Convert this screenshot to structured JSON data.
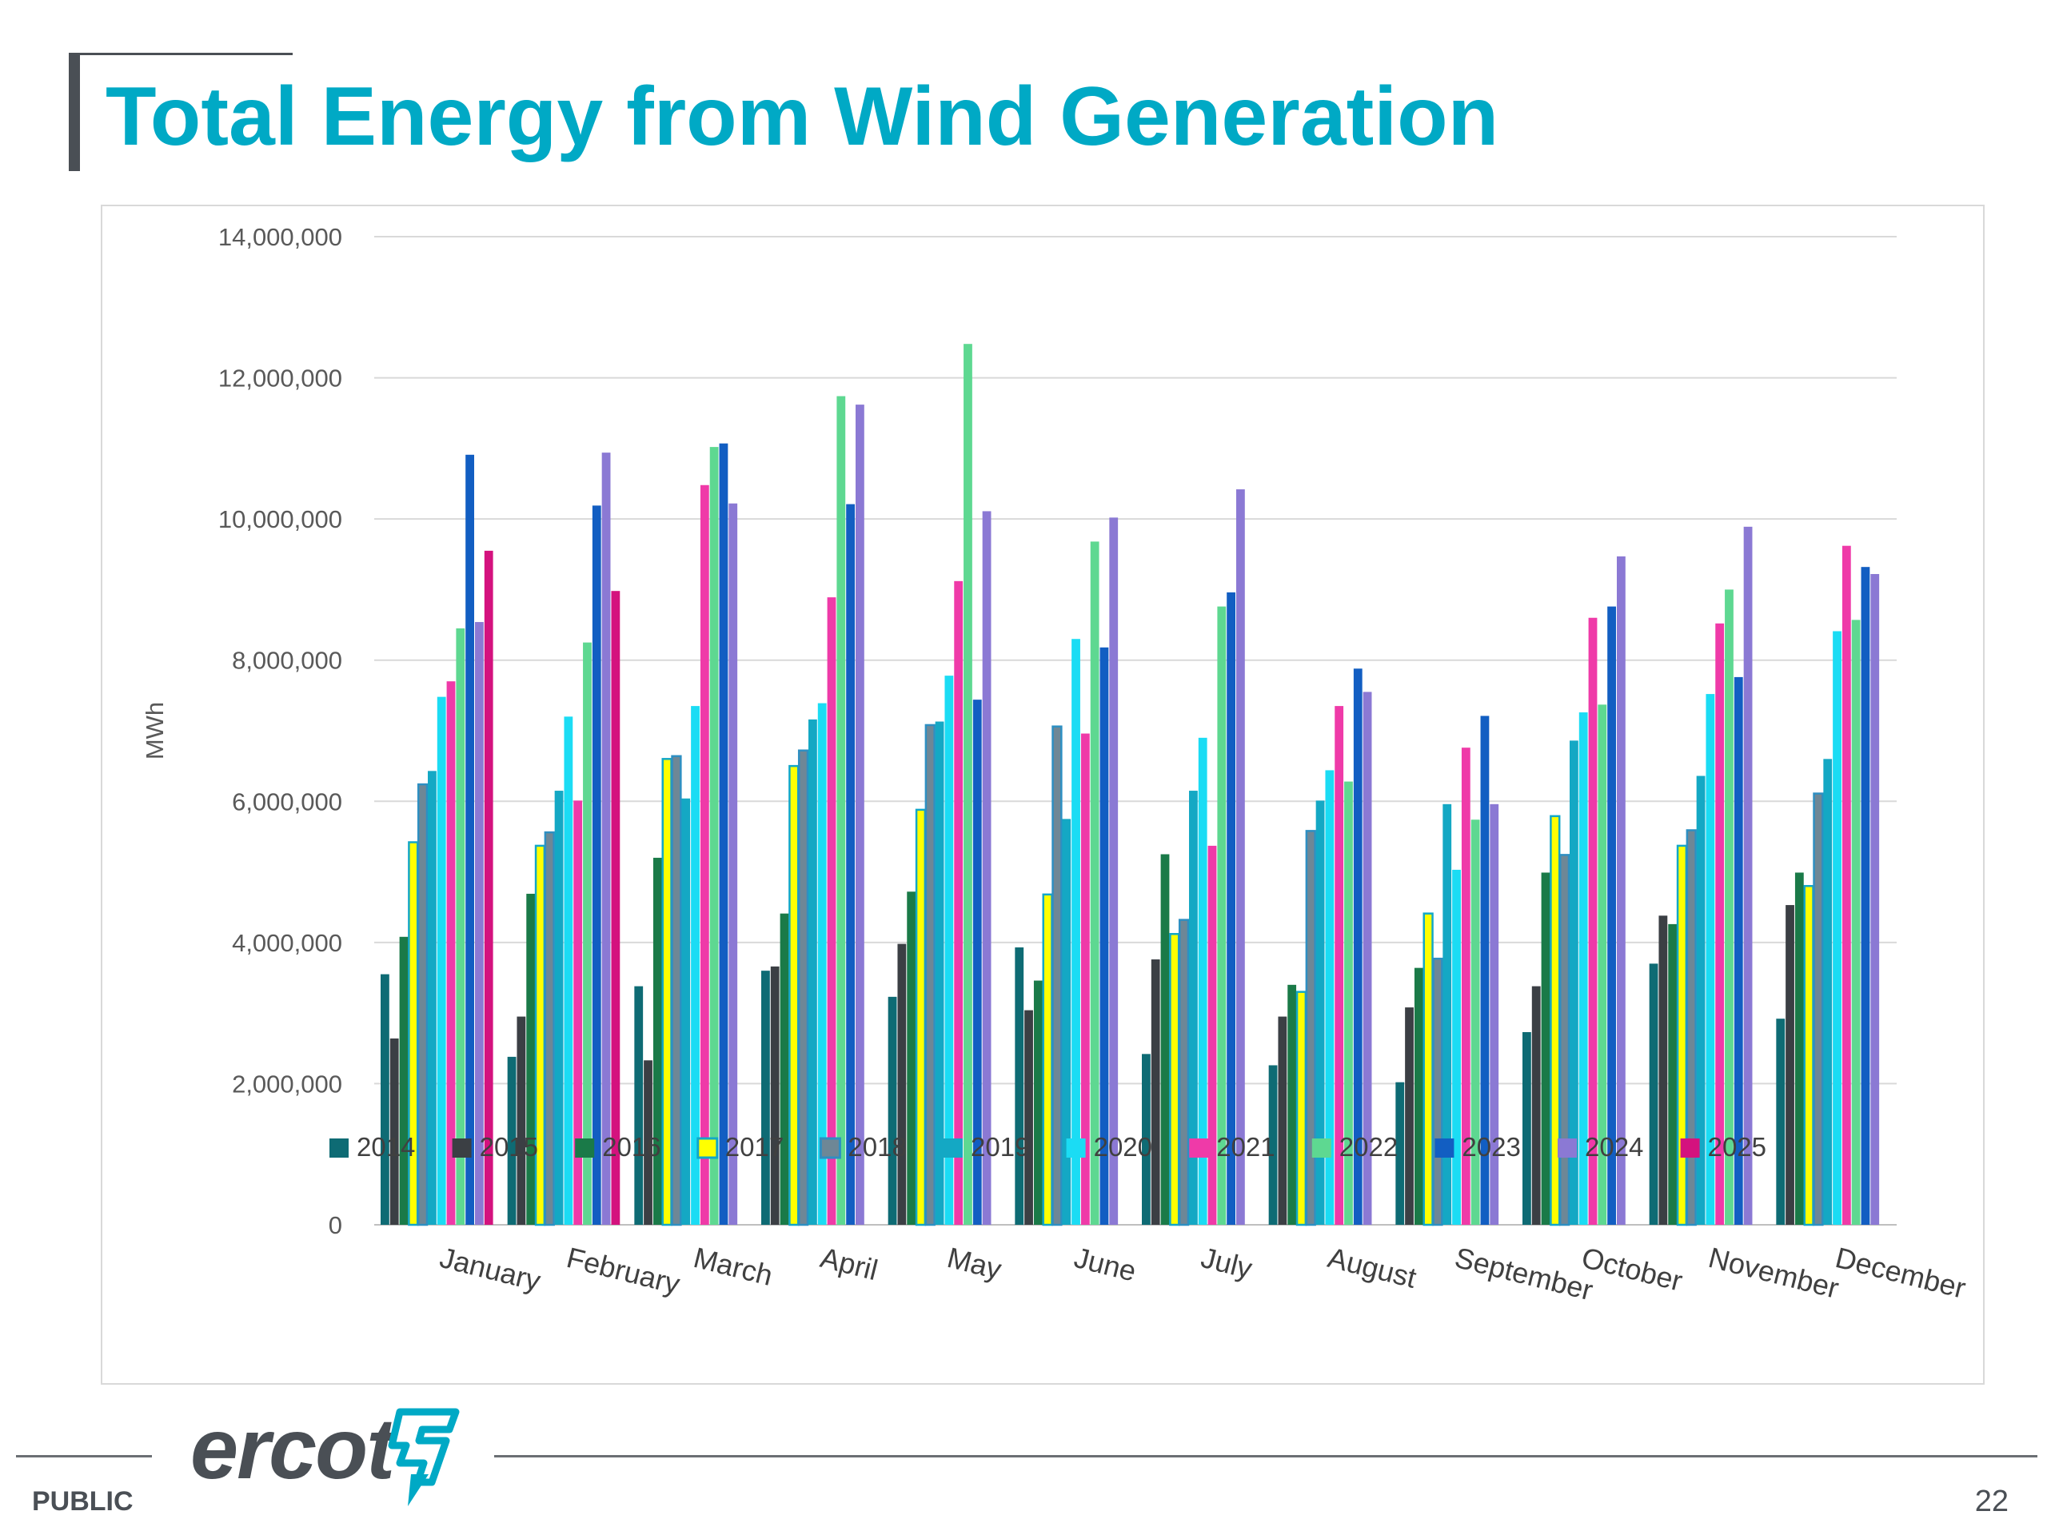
{
  "slide": {
    "title": "Total Energy from Wind Generation",
    "footer_label": "PUBLIC",
    "page_number": "22",
    "logo_text": "ercot"
  },
  "colors": {
    "title": "#00a9c5",
    "logo": "#4a4f55",
    "logo_mark": "#00a9c5"
  },
  "chart_data": {
    "type": "bar",
    "title": "",
    "xlabel": "",
    "ylabel": "MWh",
    "ylim": [
      0,
      14000000
    ],
    "yticks": [
      0,
      2000000,
      4000000,
      6000000,
      8000000,
      10000000,
      12000000,
      14000000
    ],
    "ytick_labels": [
      "0",
      "2,000,000",
      "4,000,000",
      "6,000,000",
      "8,000,000",
      "10,000,000",
      "12,000,000",
      "14,000,000"
    ],
    "grid": true,
    "legend_position": "bottom",
    "categories": [
      "January",
      "February",
      "March",
      "April",
      "May",
      "June",
      "July",
      "August",
      "September",
      "October",
      "November",
      "December"
    ],
    "series": [
      {
        "name": "2014",
        "color": "#0e6b74",
        "values": [
          3550000,
          2380000,
          3380000,
          3600000,
          3230000,
          3930000,
          2420000,
          2260000,
          2020000,
          2730000,
          3700000,
          2920000
        ]
      },
      {
        "name": "2015",
        "color": "#3b3f44",
        "values": [
          2640000,
          2950000,
          2330000,
          3660000,
          3980000,
          3040000,
          3760000,
          2950000,
          3080000,
          3380000,
          4380000,
          4530000
        ]
      },
      {
        "name": "2016",
        "color": "#1a7a48",
        "values": [
          4080000,
          4690000,
          5200000,
          4410000,
          4720000,
          3460000,
          5250000,
          3400000,
          3640000,
          4990000,
          4260000,
          4990000
        ]
      },
      {
        "name": "2017",
        "color": "#ffff00",
        "outline": "#12a7c8",
        "values": [
          5420000,
          5370000,
          6600000,
          6500000,
          5880000,
          4680000,
          4120000,
          3300000,
          4410000,
          5790000,
          5370000,
          4800000
        ]
      },
      {
        "name": "2018",
        "color": "#6e8796",
        "outline": "#2e8fc2",
        "values": [
          6240000,
          5560000,
          6640000,
          6720000,
          7080000,
          7060000,
          4320000,
          5580000,
          3770000,
          5240000,
          5590000,
          6110000
        ]
      },
      {
        "name": "2019",
        "color": "#14a8c4",
        "values": [
          6430000,
          6150000,
          6040000,
          7160000,
          7130000,
          5750000,
          6150000,
          6010000,
          5960000,
          6860000,
          6360000,
          6600000
        ]
      },
      {
        "name": "2020",
        "color": "#1bdcf4",
        "values": [
          7480000,
          7200000,
          7350000,
          7390000,
          7780000,
          8300000,
          6900000,
          6440000,
          5030000,
          7260000,
          7520000,
          8410000
        ]
      },
      {
        "name": "2021",
        "color": "#ef3aa8",
        "values": [
          7700000,
          6010000,
          10480000,
          8890000,
          9120000,
          6960000,
          5370000,
          7350000,
          6760000,
          8600000,
          8520000,
          9620000
        ]
      },
      {
        "name": "2022",
        "color": "#5ed891",
        "values": [
          8450000,
          8250000,
          11020000,
          11740000,
          12480000,
          9680000,
          8760000,
          6280000,
          5740000,
          7370000,
          9000000,
          8570000
        ]
      },
      {
        "name": "2023",
        "color": "#125ec2",
        "values": [
          10910000,
          10190000,
          11070000,
          10210000,
          7440000,
          8180000,
          8960000,
          7880000,
          7210000,
          8760000,
          7760000,
          9320000
        ]
      },
      {
        "name": "2024",
        "color": "#8b79d4",
        "values": [
          8540000,
          10940000,
          10220000,
          11620000,
          10110000,
          10020000,
          10420000,
          7550000,
          5960000,
          9470000,
          9890000,
          9220000
        ]
      },
      {
        "name": "2025",
        "color": "#d4127e",
        "values": [
          9550000,
          8980000,
          null,
          null,
          null,
          null,
          null,
          null,
          null,
          null,
          null,
          null
        ]
      }
    ]
  }
}
